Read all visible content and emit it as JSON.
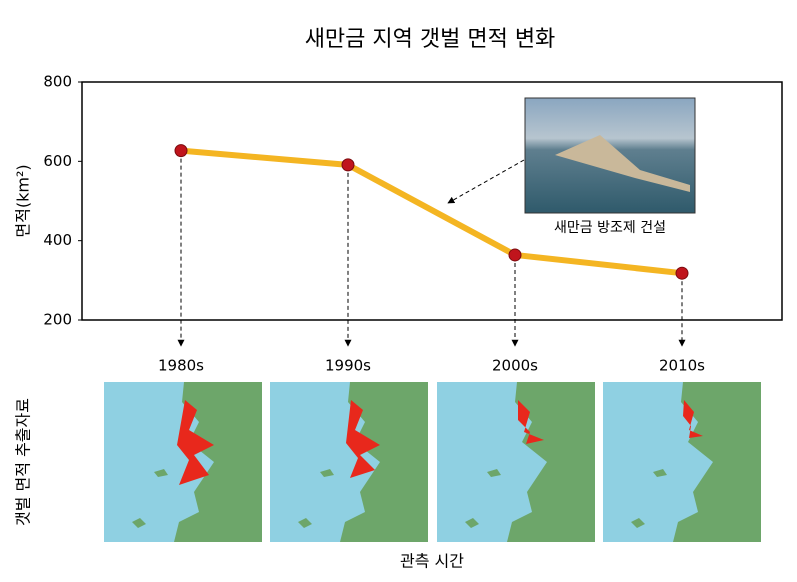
{
  "chart_data": {
    "type": "line",
    "title": "새만금 지역 갯벌 면적 변화",
    "y_label": "면적(km²)",
    "categories": [
      "1980s",
      "1990s",
      "2000s",
      "2010s"
    ],
    "values": [
      627,
      591,
      364,
      318
    ],
    "color": "#f4b522",
    "marker_color": "#c0141c",
    "ylim": [
      200,
      800
    ],
    "yticks": [
      200,
      400,
      600,
      800
    ],
    "annotation": "새만금 방조제 건설",
    "x_label": "관측 시간",
    "image_axis_label": "갯벌 면적 추출자료"
  }
}
